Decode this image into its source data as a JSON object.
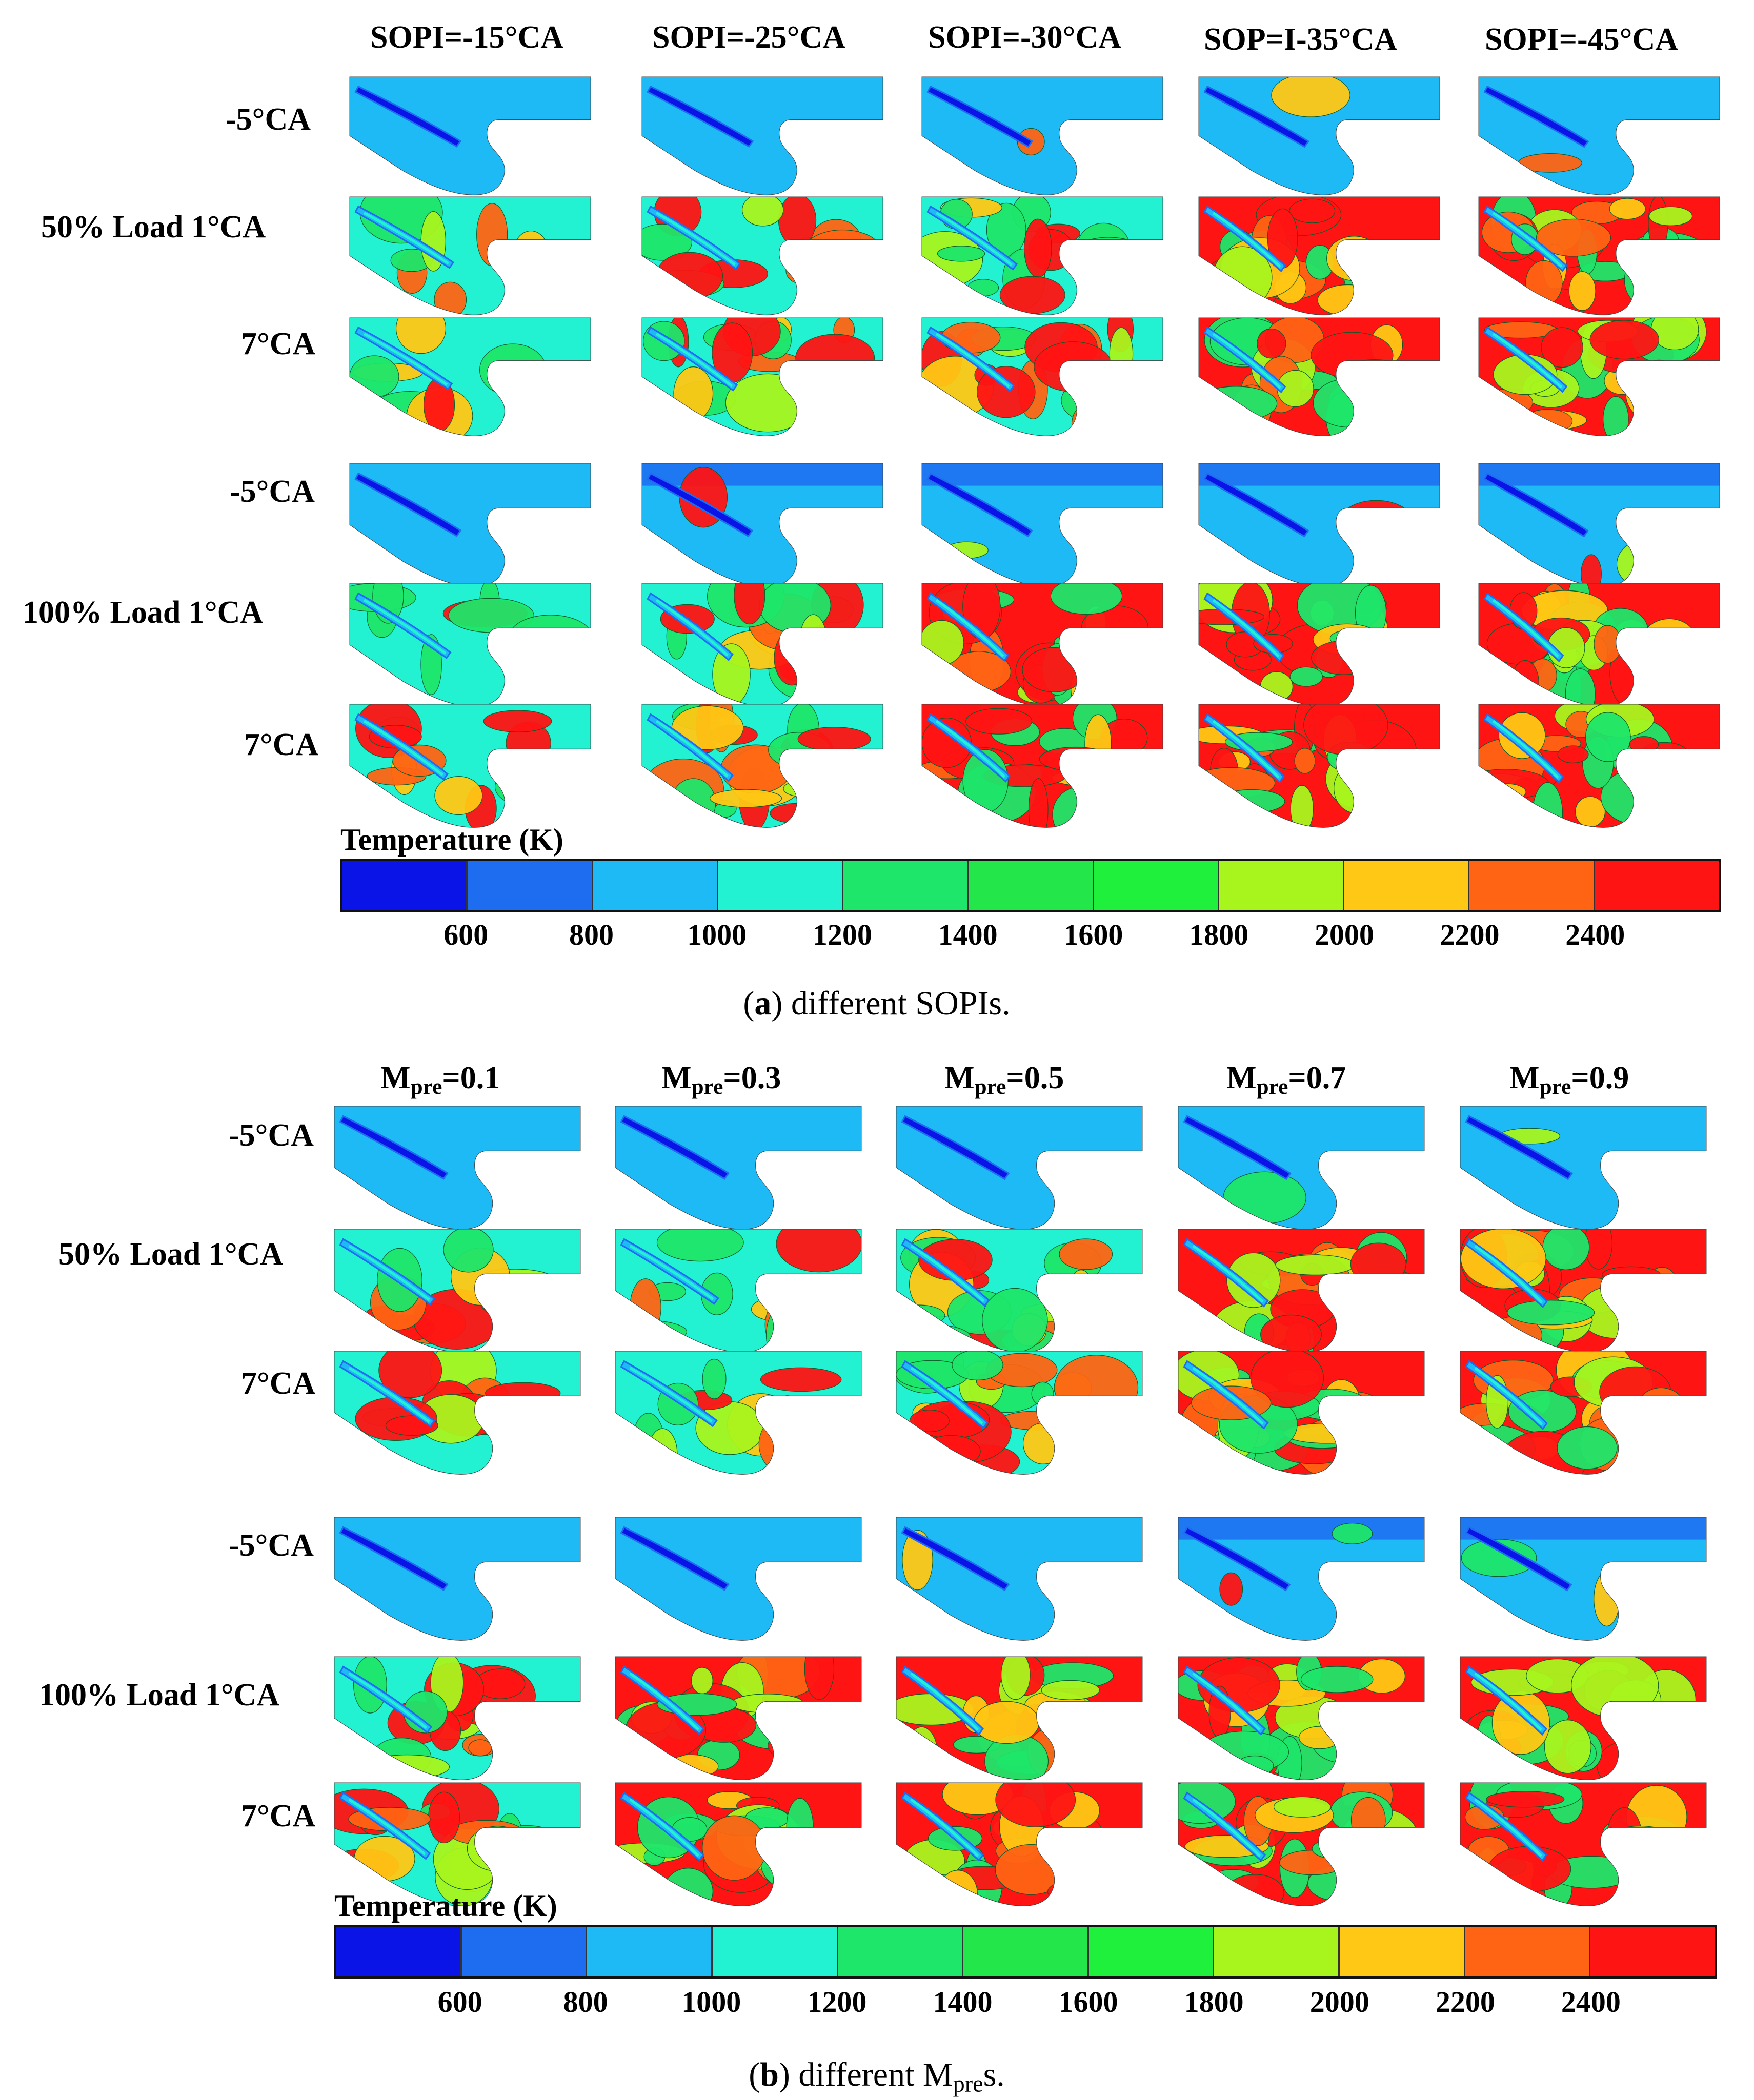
{
  "palette": {
    "levels": [
      "#0a14e6",
      "#1e6cf0",
      "#1ebaf5",
      "#22f2d2",
      "#1ee66a",
      "#22e64a",
      "#1ef03c",
      "#a8f51e",
      "#ffc814",
      "#ff6414",
      "#ff1414"
    ],
    "cold": "#1ebaf5",
    "deep": "#0a14e6",
    "mid": "#1e6cf0",
    "cyan": "#22f2d2",
    "green": "#1ee66a",
    "lime": "#a8f51e",
    "yellow": "#ffc814",
    "orange": "#ff6414",
    "red": "#ff1414"
  },
  "figure_a": {
    "columns": [
      "SOPI=-15°CA",
      "SOPI=-25°CA",
      "SOPI=-30°CA",
      "SOP=I-35°CA",
      "SOPI=-45°CA"
    ],
    "rows": {
      "r1": "-5°CA",
      "r2": "50% Load  1°CA",
      "r3": "7°CA",
      "r4": "-5°CA",
      "r5": "100% Load  1°CA",
      "r6": "7°CA"
    },
    "colorbar_title": "Temperature (K)",
    "ticks": [
      "600",
      "800",
      "1000",
      "1200",
      "1400",
      "1600",
      "1800",
      "2000",
      "2200",
      "2400"
    ],
    "caption_letter": "a",
    "caption_text": " different SOPIs."
  },
  "figure_b": {
    "col_prefix": "M",
    "col_sub": "pre",
    "col_values": [
      "=0.1",
      "=0.3",
      "=0.5",
      "=0.7",
      "=0.9"
    ],
    "rows": {
      "r1": "-5°CA",
      "r2": "50% Load 1°CA",
      "r3": "7°CA",
      "r4": "-5°CA",
      "r5": "100% Load 1°CA",
      "r6": "7°CA"
    },
    "colorbar_title": "Temperature (K)",
    "ticks": [
      "600",
      "800",
      "1000",
      "1200",
      "1400",
      "1600",
      "1800",
      "2000",
      "2200",
      "2400"
    ],
    "caption_letter": "b",
    "caption_pre": " different M",
    "caption_sub": "pre",
    "caption_post": "s."
  }
}
